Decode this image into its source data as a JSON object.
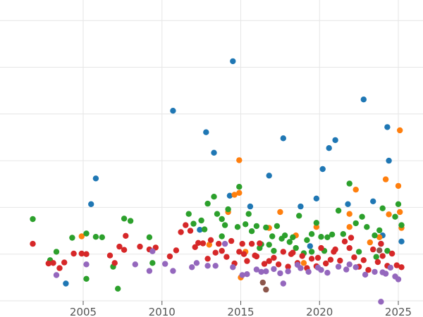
{
  "chart_data": {
    "type": "scatter",
    "title": "",
    "xlabel": "",
    "ylabel": "",
    "xlim": [
      2000.2,
      2026.7
    ],
    "ylim": [
      0,
      6.5
    ],
    "grid": "horizontal",
    "legend": "none",
    "x_ticks": [
      {
        "value": 2005,
        "label": "2005"
      },
      {
        "value": 2010,
        "label": "2010"
      },
      {
        "value": 2015,
        "label": "2015"
      },
      {
        "value": 2020,
        "label": "2020"
      },
      {
        "value": 2025,
        "label": "2025"
      }
    ],
    "y_gridlines": [
      0,
      1,
      2,
      3,
      4,
      5,
      6
    ],
    "series": [
      {
        "color": "#1f77b4",
        "points": [
          [
            2003.9,
            0.37
          ],
          [
            2005.5,
            2.07
          ],
          [
            2005.8,
            2.62
          ],
          [
            2010.7,
            4.07
          ],
          [
            2012.8,
            3.61
          ],
          [
            2013.3,
            3.17
          ],
          [
            2014.5,
            5.13
          ],
          [
            2015.6,
            2.02
          ],
          [
            2016.8,
            2.68
          ],
          [
            2017.7,
            3.48
          ],
          [
            2019.8,
            2.19
          ],
          [
            2020.2,
            2.82
          ],
          [
            2020.6,
            3.27
          ],
          [
            2021.0,
            3.44
          ],
          [
            2022.8,
            4.31
          ],
          [
            2023.4,
            2.13
          ],
          [
            2024.3,
            3.72
          ],
          [
            2024.4,
            3.0
          ],
          [
            2025.2,
            1.27
          ],
          [
            2024.0,
            1.4
          ],
          [
            2021.8,
            2.07
          ],
          [
            2018.8,
            2.02
          ],
          [
            2014.3,
            2.25
          ],
          [
            2012.4,
            1.52
          ],
          [
            2023.9,
            1.22
          ],
          [
            2019.4,
            1.17
          ]
        ]
      },
      {
        "color": "#ff7f0e",
        "points": [
          [
            2004.9,
            1.38
          ],
          [
            2014.6,
            2.27
          ],
          [
            2014.9,
            3.01
          ],
          [
            2014.9,
            2.31
          ],
          [
            2014.2,
            1.9
          ],
          [
            2015.0,
            0.5
          ],
          [
            2016.8,
            1.56
          ],
          [
            2017.5,
            1.9
          ],
          [
            2019.8,
            1.58
          ],
          [
            2021.9,
            1.86
          ],
          [
            2021.9,
            1.58
          ],
          [
            2022.3,
            2.38
          ],
          [
            2023.8,
            1.36
          ],
          [
            2024.2,
            2.6
          ],
          [
            2024.4,
            1.85
          ],
          [
            2025.0,
            2.46
          ],
          [
            2025.1,
            1.9
          ],
          [
            2025.1,
            3.65
          ],
          [
            2025.2,
            1.56
          ],
          [
            2019.0,
            0.81
          ],
          [
            2015.3,
            1.05
          ],
          [
            2018.5,
            1.4
          ],
          [
            2013.0,
            1.2
          ],
          [
            2023.2,
            1.25
          ]
        ]
      },
      {
        "color": "#2ca02c",
        "points": [
          [
            2001.8,
            1.75
          ],
          [
            2002.9,
            0.87
          ],
          [
            2003.3,
            1.05
          ],
          [
            2004.3,
            1.35
          ],
          [
            2005.2,
            1.44
          ],
          [
            2005.2,
            0.47
          ],
          [
            2005.8,
            1.37
          ],
          [
            2006.2,
            1.36
          ],
          [
            2006.9,
            0.73
          ],
          [
            2007.2,
            0.26
          ],
          [
            2007.6,
            1.76
          ],
          [
            2008.0,
            1.71
          ],
          [
            2009.2,
            1.36
          ],
          [
            2009.4,
            0.81
          ],
          [
            2011.7,
            1.86
          ],
          [
            2012.0,
            1.65
          ],
          [
            2012.5,
            1.72
          ],
          [
            2012.7,
            1.53
          ],
          [
            2012.9,
            2.08
          ],
          [
            2013.3,
            2.23
          ],
          [
            2013.5,
            1.86
          ],
          [
            2013.8,
            1.75
          ],
          [
            2014.0,
            1.62
          ],
          [
            2014.2,
            1.96
          ],
          [
            2014.8,
            1.58
          ],
          [
            2014.9,
            2.44
          ],
          [
            2015.3,
            1.64
          ],
          [
            2015.5,
            1.86
          ],
          [
            2015.7,
            1.49
          ],
          [
            2016.0,
            1.6
          ],
          [
            2016.3,
            1.21
          ],
          [
            2016.6,
            1.57
          ],
          [
            2017.0,
            1.38
          ],
          [
            2017.3,
            1.6
          ],
          [
            2017.6,
            1.33
          ],
          [
            2017.8,
            1.4
          ],
          [
            2018.1,
            1.26
          ],
          [
            2018.3,
            1.36
          ],
          [
            2018.7,
            1.82
          ],
          [
            2019.0,
            1.02
          ],
          [
            2019.2,
            1.3
          ],
          [
            2019.5,
            1.43
          ],
          [
            2019.8,
            1.67
          ],
          [
            2020.1,
            1.37
          ],
          [
            2020.5,
            1.36
          ],
          [
            2020.8,
            1.42
          ],
          [
            2021.2,
            1.93
          ],
          [
            2021.5,
            1.43
          ],
          [
            2021.9,
            2.51
          ],
          [
            2022.3,
            1.66
          ],
          [
            2022.7,
            1.8
          ],
          [
            2023.0,
            1.58
          ],
          [
            2023.5,
            1.4
          ],
          [
            2023.8,
            1.51
          ],
          [
            2024.0,
            1.98
          ],
          [
            2024.3,
            1.07
          ],
          [
            2024.8,
            1.8
          ],
          [
            2025.0,
            2.07
          ],
          [
            2025.2,
            1.62
          ],
          [
            2016.2,
            1.13
          ],
          [
            2018.5,
            1.13
          ],
          [
            2020.3,
            1.07
          ],
          [
            2022.5,
            1.05
          ],
          [
            2013.8,
            1.38
          ],
          [
            2017.1,
            1.07
          ],
          [
            2023.6,
            0.94
          ],
          [
            2019.5,
            1.05
          ],
          [
            2016.8,
            1.2
          ]
        ]
      },
      {
        "color": "#d62728",
        "points": [
          [
            2001.8,
            1.22
          ],
          [
            2002.8,
            0.8
          ],
          [
            2003.1,
            0.81
          ],
          [
            2003.5,
            0.7
          ],
          [
            2003.8,
            0.82
          ],
          [
            2004.4,
            1.01
          ],
          [
            2004.9,
            1.01
          ],
          [
            2005.2,
            1.0
          ],
          [
            2006.7,
            0.97
          ],
          [
            2007.0,
            0.81
          ],
          [
            2007.3,
            1.16
          ],
          [
            2007.6,
            1.09
          ],
          [
            2007.7,
            1.39
          ],
          [
            2008.6,
            1.16
          ],
          [
            2009.2,
            1.1
          ],
          [
            2009.6,
            1.14
          ],
          [
            2010.5,
            0.95
          ],
          [
            2010.9,
            1.08
          ],
          [
            2011.2,
            1.47
          ],
          [
            2011.5,
            1.62
          ],
          [
            2011.8,
            1.5
          ],
          [
            2012.1,
            1.15
          ],
          [
            2012.3,
            1.24
          ],
          [
            2012.6,
            1.23
          ],
          [
            2012.9,
            0.9
          ],
          [
            2013.1,
            1.3
          ],
          [
            2013.4,
            1.03
          ],
          [
            2013.6,
            1.22
          ],
          [
            2013.8,
            1.07
          ],
          [
            2014.1,
            0.94
          ],
          [
            2014.4,
            1.28
          ],
          [
            2014.6,
            0.8
          ],
          [
            2014.9,
            1.05
          ],
          [
            2015.2,
            1.0
          ],
          [
            2015.4,
            0.85
          ],
          [
            2015.7,
            1.22
          ],
          [
            2015.9,
            0.97
          ],
          [
            2016.2,
            1.23
          ],
          [
            2016.5,
            0.79
          ],
          [
            2016.8,
            0.85
          ],
          [
            2017.1,
            0.92
          ],
          [
            2017.4,
            0.78
          ],
          [
            2017.7,
            1.05
          ],
          [
            2018.0,
            0.73
          ],
          [
            2018.3,
            1.03
          ],
          [
            2018.6,
            0.81
          ],
          [
            2018.9,
            0.96
          ],
          [
            2019.2,
            0.7
          ],
          [
            2019.5,
            0.9
          ],
          [
            2019.8,
            0.74
          ],
          [
            2020.1,
            1.13
          ],
          [
            2020.4,
            0.8
          ],
          [
            2020.7,
            0.88
          ],
          [
            2021.0,
            1.1
          ],
          [
            2021.3,
            0.86
          ],
          [
            2021.6,
            1.27
          ],
          [
            2021.9,
            1.13
          ],
          [
            2022.2,
            0.93
          ],
          [
            2022.5,
            0.73
          ],
          [
            2022.8,
            0.87
          ],
          [
            2023.1,
            0.66
          ],
          [
            2023.4,
            1.1
          ],
          [
            2023.7,
            0.83
          ],
          [
            2024.0,
            0.96
          ],
          [
            2024.3,
            0.75
          ],
          [
            2024.6,
            1.01
          ],
          [
            2024.9,
            0.76
          ],
          [
            2025.2,
            0.72
          ],
          [
            2015.1,
            1.22
          ],
          [
            2018.2,
            1.0
          ],
          [
            2020.9,
            1.05
          ],
          [
            2023.9,
            1.22
          ],
          [
            2016.0,
            0.95
          ],
          [
            2019.9,
            0.92
          ],
          [
            2022.0,
            1.35
          ]
        ]
      },
      {
        "color": "#9467bd",
        "points": [
          [
            2003.3,
            0.55
          ],
          [
            2005.2,
            0.78
          ],
          [
            2008.3,
            0.78
          ],
          [
            2009.2,
            0.64
          ],
          [
            2009.4,
            1.06
          ],
          [
            2010.2,
            0.79
          ],
          [
            2010.7,
            0.64
          ],
          [
            2011.9,
            0.72
          ],
          [
            2012.2,
            0.81
          ],
          [
            2012.9,
            0.75
          ],
          [
            2013.4,
            0.75
          ],
          [
            2014.0,
            1.22
          ],
          [
            2014.5,
            0.72
          ],
          [
            2015.1,
            0.55
          ],
          [
            2015.4,
            0.57
          ],
          [
            2016.0,
            0.67
          ],
          [
            2016.6,
            0.63
          ],
          [
            2017.1,
            0.68
          ],
          [
            2017.5,
            0.59
          ],
          [
            2017.7,
            0.37
          ],
          [
            2018.0,
            0.63
          ],
          [
            2018.6,
            0.77
          ],
          [
            2019.3,
            0.62
          ],
          [
            2019.9,
            0.71
          ],
          [
            2020.5,
            0.6
          ],
          [
            2021.2,
            0.73
          ],
          [
            2021.7,
            0.67
          ],
          [
            2022.3,
            0.72
          ],
          [
            2022.9,
            0.56
          ],
          [
            2023.5,
            0.62
          ],
          [
            2024.0,
            0.61
          ],
          [
            2024.5,
            0.71
          ],
          [
            2024.8,
            0.52
          ],
          [
            2025.0,
            0.46
          ],
          [
            2023.9,
            -0.02
          ],
          [
            2021.9,
            0.78
          ],
          [
            2018.8,
            0.7
          ],
          [
            2016.3,
            0.62
          ],
          [
            2020.1,
            0.66
          ],
          [
            2024.2,
            0.58
          ]
        ]
      },
      {
        "color": "#8c564b",
        "points": [
          [
            2016.4,
            0.39
          ],
          [
            2016.6,
            0.24
          ],
          [
            2023.8,
            1.08
          ]
        ]
      }
    ]
  }
}
